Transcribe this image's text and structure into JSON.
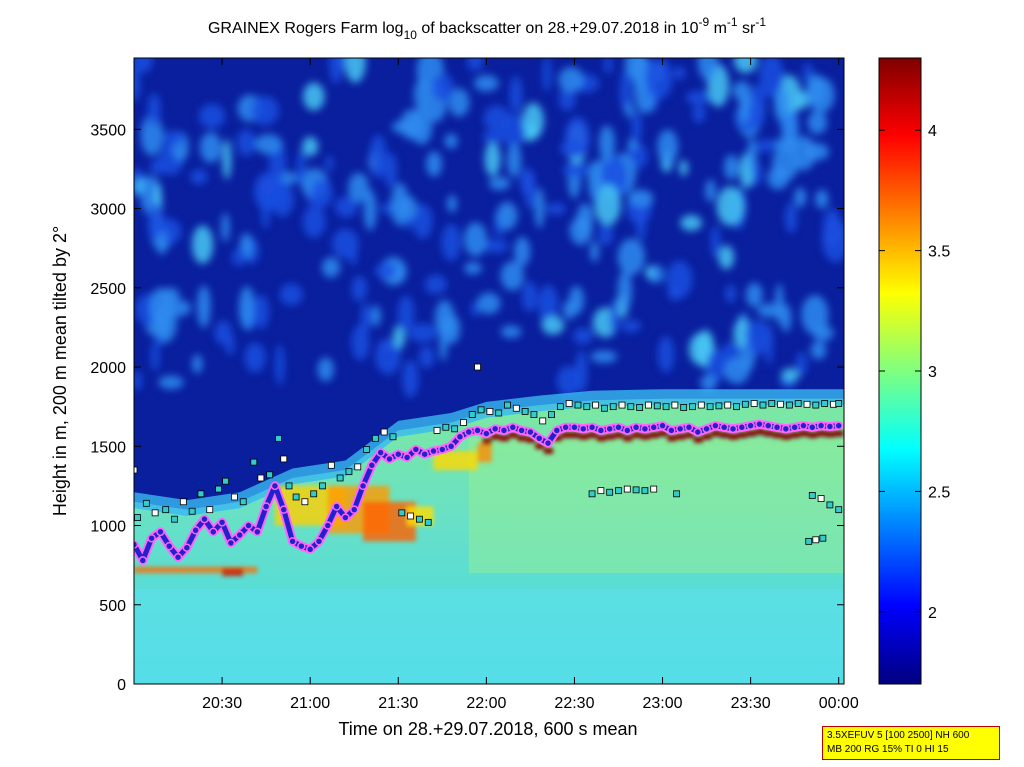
{
  "title": {
    "part1": "GRAINEX Rogers Farm log",
    "sub": "10",
    "part2": " of backscatter on 28.+29.07.2018 in 10",
    "sup1": "-9",
    "part3": " m",
    "sup2": "-1",
    "part4": " sr",
    "sup3": "-1"
  },
  "param_box": {
    "line1": "3.5XEFUV 5 [100 2500] NH 600",
    "line2": "MB 200 RG 15% TI 0 HI 15"
  },
  "colors": {
    "marker_white": "#ffffff",
    "marker_cyan": "#33cccc",
    "marker_red": "#cc0000",
    "layer_line": "#2222cc",
    "layer_outline": "#ff66ff",
    "background_blue": "#0a1f9e"
  },
  "chart_data": {
    "type": "heatmap",
    "xlabel": "Time on 28.+29.07.2018, 600 s mean",
    "ylabel": "Height in m, 200 m mean tilted by 2°",
    "x_ticks": [
      {
        "label": "20:30",
        "hours": 20.5
      },
      {
        "label": "21:00",
        "hours": 21.0
      },
      {
        "label": "21:30",
        "hours": 21.5
      },
      {
        "label": "22:00",
        "hours": 22.0
      },
      {
        "label": "22:30",
        "hours": 22.5
      },
      {
        "label": "23:00",
        "hours": 23.0
      },
      {
        "label": "23:30",
        "hours": 23.5
      },
      {
        "label": "00:00",
        "hours": 24.0
      }
    ],
    "xlim_hours": [
      20.0,
      24.03
    ],
    "y_ticks": [
      0,
      500,
      1000,
      1500,
      2000,
      2500,
      3000,
      3500
    ],
    "ylim": [
      0,
      3950
    ],
    "colorbar": {
      "range": [
        1.7,
        4.3
      ],
      "ticks": [
        2,
        2.5,
        3,
        3.5,
        4
      ],
      "colormap": "jet"
    },
    "series": [
      {
        "marker": "blue-circle-magenta-outline",
        "points": [
          [
            20.0,
            880
          ],
          [
            20.05,
            780
          ],
          [
            20.1,
            920
          ],
          [
            20.15,
            960
          ],
          [
            20.2,
            870
          ],
          [
            20.25,
            800
          ],
          [
            20.3,
            860
          ],
          [
            20.35,
            970
          ],
          [
            20.4,
            1040
          ],
          [
            20.45,
            960
          ],
          [
            20.5,
            1020
          ],
          [
            20.55,
            890
          ],
          [
            20.6,
            940
          ],
          [
            20.65,
            1000
          ],
          [
            20.7,
            960
          ],
          [
            20.75,
            1120
          ],
          [
            20.8,
            1250
          ],
          [
            20.85,
            1100
          ],
          [
            20.9,
            900
          ],
          [
            20.95,
            870
          ],
          [
            21.0,
            850
          ],
          [
            21.05,
            900
          ],
          [
            21.1,
            1000
          ],
          [
            21.15,
            1120
          ],
          [
            21.2,
            1050
          ],
          [
            21.25,
            1100
          ],
          [
            21.3,
            1250
          ],
          [
            21.35,
            1380
          ],
          [
            21.4,
            1460
          ],
          [
            21.45,
            1420
          ],
          [
            21.5,
            1450
          ],
          [
            21.55,
            1430
          ],
          [
            21.6,
            1480
          ],
          [
            21.65,
            1450
          ],
          [
            21.7,
            1470
          ],
          [
            21.75,
            1480
          ],
          [
            21.8,
            1500
          ],
          [
            21.85,
            1560
          ],
          [
            21.9,
            1590
          ],
          [
            21.95,
            1600
          ],
          [
            22.0,
            1580
          ],
          [
            22.05,
            1610
          ],
          [
            22.1,
            1600
          ],
          [
            22.15,
            1620
          ],
          [
            22.2,
            1600
          ],
          [
            22.25,
            1590
          ],
          [
            22.3,
            1550
          ],
          [
            22.35,
            1520
          ],
          [
            22.4,
            1600
          ],
          [
            22.45,
            1620
          ],
          [
            22.5,
            1620
          ],
          [
            22.55,
            1610
          ],
          [
            22.6,
            1620
          ],
          [
            22.65,
            1600
          ],
          [
            22.7,
            1610
          ],
          [
            22.75,
            1620
          ],
          [
            22.8,
            1600
          ],
          [
            22.85,
            1620
          ],
          [
            22.9,
            1610
          ],
          [
            22.95,
            1620
          ],
          [
            23.0,
            1630
          ],
          [
            23.05,
            1600
          ],
          [
            23.1,
            1610
          ],
          [
            23.15,
            1620
          ],
          [
            23.2,
            1590
          ],
          [
            23.25,
            1610
          ],
          [
            23.3,
            1630
          ],
          [
            23.35,
            1620
          ],
          [
            23.4,
            1610
          ],
          [
            23.45,
            1620
          ],
          [
            23.5,
            1630
          ],
          [
            23.55,
            1640
          ],
          [
            23.6,
            1630
          ],
          [
            23.65,
            1620
          ],
          [
            23.7,
            1610
          ],
          [
            23.75,
            1620
          ],
          [
            23.8,
            1630
          ],
          [
            23.85,
            1620
          ],
          [
            23.9,
            1630
          ],
          [
            23.95,
            1625
          ],
          [
            24.0,
            1630
          ]
        ]
      },
      {
        "marker": "square-white-cyan",
        "points": [
          [
            20.0,
            1350
          ],
          [
            20.02,
            1050
          ],
          [
            20.07,
            1140
          ],
          [
            20.12,
            1080
          ],
          [
            20.18,
            1100
          ],
          [
            20.23,
            1040
          ],
          [
            20.28,
            1150
          ],
          [
            20.33,
            1090
          ],
          [
            20.38,
            1200
          ],
          [
            20.43,
            1100
          ],
          [
            20.48,
            1230
          ],
          [
            20.52,
            1280
          ],
          [
            20.57,
            1180
          ],
          [
            20.62,
            1150
          ],
          [
            20.68,
            1400
          ],
          [
            20.72,
            1300
          ],
          [
            20.77,
            1320
          ],
          [
            20.82,
            1550
          ],
          [
            20.85,
            1420
          ],
          [
            20.88,
            1250
          ],
          [
            20.92,
            1180
          ],
          [
            20.97,
            1150
          ],
          [
            21.02,
            1200
          ],
          [
            21.07,
            1250
          ],
          [
            21.12,
            1380
          ],
          [
            21.17,
            1300
          ],
          [
            21.22,
            1340
          ],
          [
            21.27,
            1370
          ],
          [
            21.32,
            1480
          ],
          [
            21.37,
            1550
          ],
          [
            21.42,
            1590
          ],
          [
            21.47,
            1560
          ],
          [
            21.52,
            1080
          ],
          [
            21.57,
            1060
          ],
          [
            21.62,
            1040
          ],
          [
            21.67,
            1020
          ],
          [
            21.72,
            1600
          ],
          [
            21.77,
            1620
          ],
          [
            21.82,
            1610
          ],
          [
            21.87,
            1650
          ],
          [
            21.92,
            1700
          ],
          [
            21.97,
            1730
          ],
          [
            22.02,
            1720
          ],
          [
            22.07,
            1710
          ],
          [
            22.12,
            1760
          ],
          [
            22.17,
            1740
          ],
          [
            22.22,
            1720
          ],
          [
            22.27,
            1700
          ],
          [
            22.32,
            1660
          ],
          [
            22.37,
            1700
          ],
          [
            22.42,
            1750
          ],
          [
            22.47,
            1770
          ],
          [
            22.52,
            1760
          ],
          [
            22.57,
            1750
          ],
          [
            22.62,
            1760
          ],
          [
            22.67,
            1740
          ],
          [
            22.72,
            1750
          ],
          [
            22.77,
            1760
          ],
          [
            22.82,
            1750
          ],
          [
            22.87,
            1745
          ],
          [
            22.92,
            1760
          ],
          [
            22.97,
            1755
          ],
          [
            23.02,
            1750
          ],
          [
            23.07,
            1760
          ],
          [
            23.12,
            1745
          ],
          [
            23.17,
            1750
          ],
          [
            23.22,
            1760
          ],
          [
            23.27,
            1750
          ],
          [
            23.32,
            1755
          ],
          [
            23.37,
            1760
          ],
          [
            23.42,
            1750
          ],
          [
            23.47,
            1765
          ],
          [
            23.52,
            1770
          ],
          [
            23.57,
            1760
          ],
          [
            23.62,
            1770
          ],
          [
            23.67,
            1765
          ],
          [
            23.72,
            1760
          ],
          [
            23.77,
            1770
          ],
          [
            23.82,
            1765
          ],
          [
            23.87,
            1760
          ],
          [
            23.92,
            1770
          ],
          [
            23.97,
            1765
          ],
          [
            24.0,
            1770
          ],
          [
            22.6,
            1200
          ],
          [
            22.65,
            1220
          ],
          [
            22.7,
            1210
          ],
          [
            22.75,
            1220
          ],
          [
            22.8,
            1230
          ],
          [
            22.85,
            1225
          ],
          [
            22.9,
            1220
          ],
          [
            22.95,
            1230
          ],
          [
            23.08,
            1200
          ],
          [
            23.83,
            900
          ],
          [
            23.87,
            910
          ],
          [
            23.91,
            920
          ],
          [
            23.85,
            1190
          ],
          [
            23.9,
            1170
          ],
          [
            23.95,
            1130
          ],
          [
            24.0,
            1100
          ],
          [
            21.95,
            2000
          ]
        ]
      }
    ]
  }
}
